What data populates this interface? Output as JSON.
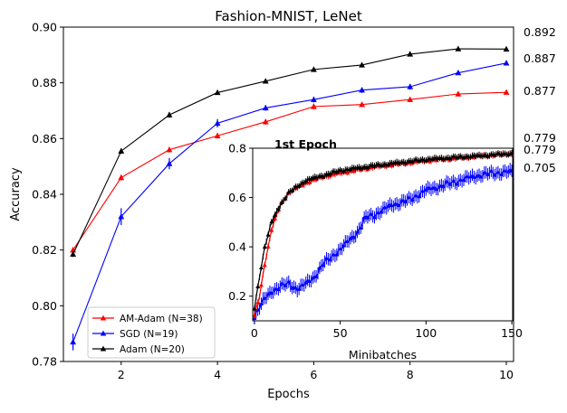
{
  "chart_data": [
    {
      "type": "line",
      "title": "Fashion-MNIST, LeNet",
      "xlabel": "Epochs",
      "ylabel": "Accuracy",
      "xlim": [
        0.8,
        10.15
      ],
      "ylim": [
        0.78,
        0.9
      ],
      "xticks": [
        2,
        4,
        6,
        8,
        10
      ],
      "yticks": [
        0.78,
        0.8,
        0.82,
        0.84,
        0.86,
        0.88,
        0.9
      ],
      "legend_position": "lower-left",
      "x": [
        1,
        2,
        3,
        4,
        5,
        6,
        7,
        8,
        9,
        10
      ],
      "series": [
        {
          "name": "AM-Adam (N=38)",
          "color": "#ff0000",
          "marker": "triangle",
          "values": [
            0.82,
            0.846,
            0.856,
            0.861,
            0.866,
            0.8715,
            0.8722,
            0.874,
            0.876,
            0.8766
          ],
          "errors": [
            0.001,
            0.001,
            0.001,
            0.001,
            0.001,
            0.001,
            0.0008,
            0.0008,
            0.0008,
            0.0007
          ]
        },
        {
          "name": "SGD (N=19)",
          "color": "#0000ff",
          "marker": "triangle",
          "values": [
            0.787,
            0.832,
            0.851,
            0.8655,
            0.871,
            0.874,
            0.8774,
            0.8786,
            0.8836,
            0.8871
          ],
          "errors": [
            0.003,
            0.003,
            0.002,
            0.0015,
            0.001,
            0.001,
            0.001,
            0.001,
            0.0008,
            0.0008
          ]
        },
        {
          "name": "Adam (N=20)",
          "color": "#000000",
          "marker": "triangle",
          "values": [
            0.8185,
            0.8555,
            0.8685,
            0.8765,
            0.8806,
            0.8848,
            0.8864,
            0.8903,
            0.8922,
            0.8921
          ],
          "errors": [
            0.001,
            0.001,
            0.001,
            0.0008,
            0.0008,
            0.0008,
            0.0008,
            0.0006,
            0.0006,
            0.0006
          ]
        }
      ],
      "right_labels": [
        "0.892",
        "0.887",
        "0.877"
      ]
    },
    {
      "type": "line",
      "title": "1st Epoch",
      "xlabel": "Minibatches",
      "ylabel": "",
      "xlim": [
        -1,
        150.5
      ],
      "ylim": [
        0.1,
        0.8
      ],
      "xticks": [
        0,
        50,
        100,
        150
      ],
      "yticks": [
        0.2,
        0.4,
        0.6,
        0.8
      ],
      "series": [
        {
          "name": "AM-Adam",
          "color": "#ff0000",
          "keypoints_x": [
            0,
            3,
            6,
            10,
            15,
            20,
            30,
            40,
            50,
            70,
            100,
            150
          ],
          "keypoints_y": [
            0.12,
            0.2,
            0.33,
            0.47,
            0.57,
            0.62,
            0.66,
            0.685,
            0.7,
            0.725,
            0.75,
            0.779
          ]
        },
        {
          "name": "SGD",
          "color": "#0000ff",
          "keypoints_x": [
            0,
            5,
            10,
            15,
            20,
            25,
            30,
            35,
            40,
            50,
            60,
            65,
            70,
            80,
            90,
            100,
            110,
            120,
            130,
            140,
            150
          ],
          "keypoints_y": [
            0.12,
            0.18,
            0.22,
            0.24,
            0.25,
            0.23,
            0.25,
            0.28,
            0.33,
            0.39,
            0.46,
            0.52,
            0.53,
            0.57,
            0.59,
            0.63,
            0.65,
            0.67,
            0.69,
            0.7,
            0.705
          ]
        },
        {
          "name": "Adam",
          "color": "#000000",
          "keypoints_x": [
            0,
            3,
            6,
            10,
            15,
            20,
            30,
            40,
            50,
            70,
            100,
            150
          ],
          "keypoints_y": [
            0.15,
            0.28,
            0.4,
            0.5,
            0.57,
            0.62,
            0.67,
            0.69,
            0.71,
            0.73,
            0.755,
            0.779
          ]
        }
      ],
      "right_labels": [
        "0.779",
        "0.779",
        "0.705"
      ]
    }
  ]
}
